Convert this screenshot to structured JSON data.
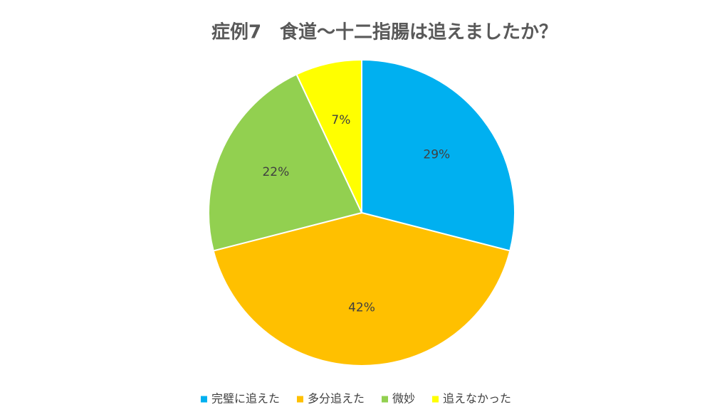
{
  "chart_data": {
    "type": "pie",
    "title": "症例7　食道〜十二指腸は追えましたか？",
    "categories": [
      "完璧に追えた",
      "多分追えた",
      "微妙",
      "追えなかった"
    ],
    "values": [
      29,
      42,
      22,
      7
    ],
    "value_labels": [
      "29%",
      "42%",
      "22%",
      "7%"
    ],
    "colors": [
      "#00b0f0",
      "#ffc000",
      "#92d050",
      "#ffff00"
    ],
    "legend": "bottom"
  }
}
